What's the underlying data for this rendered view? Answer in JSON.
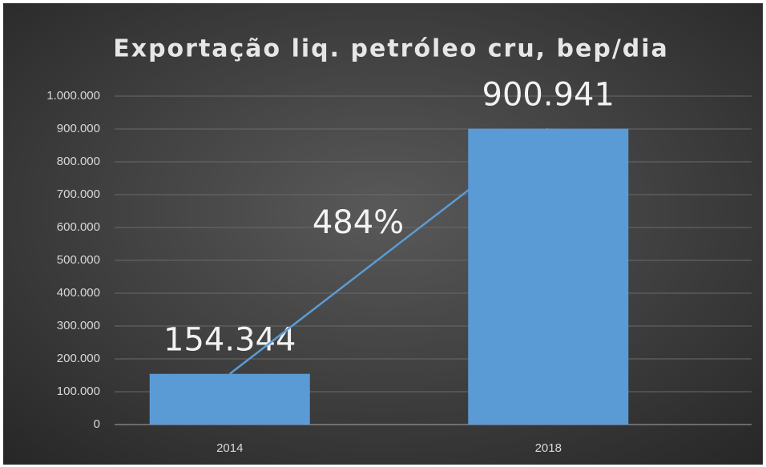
{
  "chart_data": {
    "type": "bar",
    "title": "Exportação liq. petróleo cru, bep/dia",
    "categories": [
      "2014",
      "2018"
    ],
    "values": [
      154344,
      900941
    ],
    "value_labels": [
      "154.344",
      "900.941"
    ],
    "annotation": "484%",
    "color": "#5b9bd5",
    "ylim": [
      0,
      1000000
    ],
    "yticks": [
      0,
      {
        "value": 100000,
        "label": "100.000"
      },
      {
        "value": 200000,
        "label": "200.000"
      },
      {
        "value": 300000,
        "label": "300.000"
      },
      {
        "value": 400000,
        "label": "400.000"
      },
      {
        "value": 500000,
        "label": "500.000"
      },
      {
        "value": 600000,
        "label": "600.000"
      },
      {
        "value": 700000,
        "label": "700.000"
      },
      {
        "value": 800000,
        "label": "800.000"
      },
      {
        "value": 900000,
        "label": "900.000"
      },
      {
        "value": 1000000,
        "label": "1.000.000"
      }
    ],
    "grid": true
  }
}
